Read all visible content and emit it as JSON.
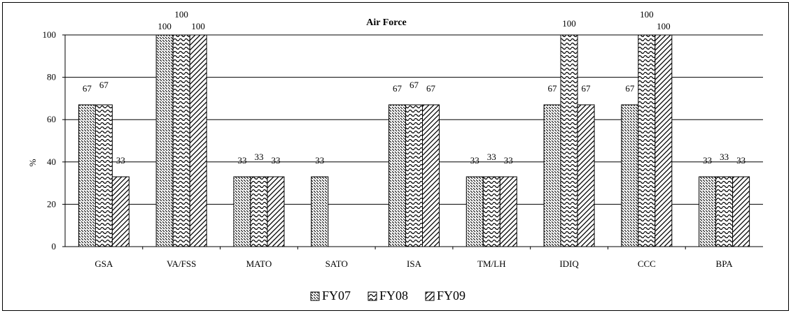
{
  "chart_data": {
    "type": "bar",
    "title": "Air Force",
    "ylabel": "%",
    "xlabel": "",
    "ylim": [
      0,
      100
    ],
    "yticks": [
      0,
      20,
      40,
      60,
      80,
      100
    ],
    "grid": true,
    "legend_position": "bottom",
    "categories": [
      "GSA",
      "VA/FSS",
      "MATO",
      "SATO",
      "ISA",
      "TM/LH",
      "IDIQ",
      "CCC",
      "BPA"
    ],
    "series": [
      {
        "name": "FY07",
        "values": [
          67,
          100,
          33,
          33,
          67,
          33,
          67,
          67,
          33
        ],
        "labels": [
          "67",
          "100",
          "33",
          "33",
          "67",
          "33",
          "67",
          "67",
          "33"
        ],
        "pattern": "dashes"
      },
      {
        "name": "FY08",
        "values": [
          67,
          100,
          33,
          null,
          67,
          33,
          100,
          100,
          33
        ],
        "labels": [
          "67",
          "100",
          "33",
          "",
          "67",
          "33",
          "100",
          "100",
          "33"
        ],
        "pattern": "waves"
      },
      {
        "name": "FY09",
        "values": [
          33,
          100,
          33,
          null,
          67,
          33,
          67,
          100,
          33
        ],
        "labels": [
          "33",
          "100",
          "33",
          "",
          "67",
          "33",
          "67",
          "100",
          "33"
        ],
        "pattern": "diagonal"
      }
    ]
  }
}
